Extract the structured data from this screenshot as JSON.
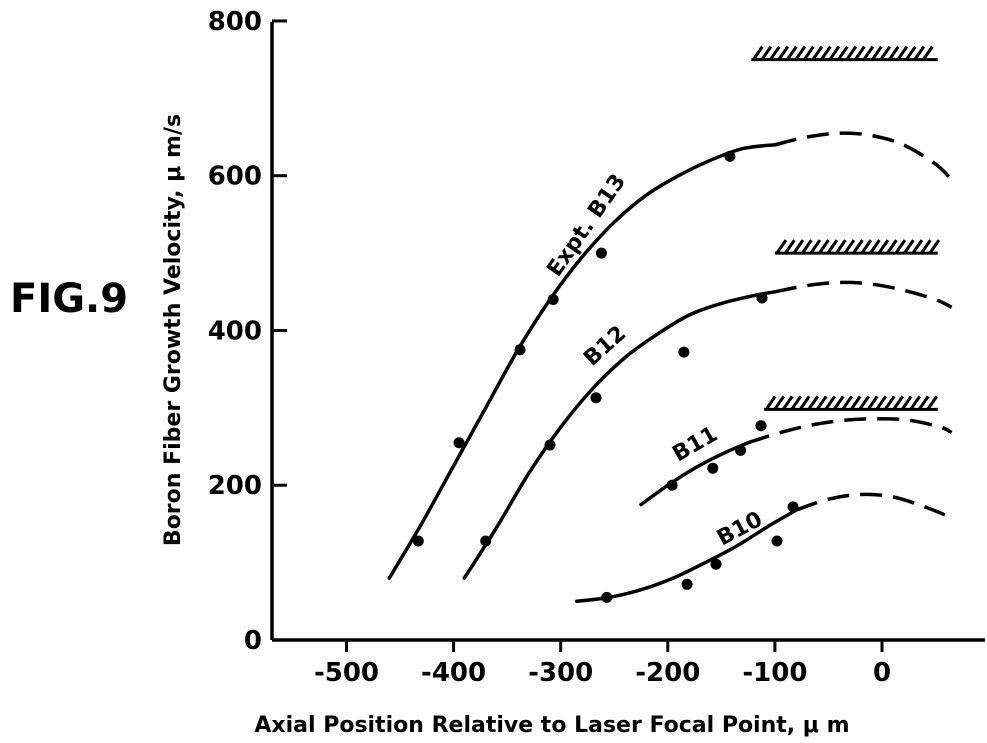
{
  "figure_label": "FIG.9",
  "chart_data": {
    "type": "scatter",
    "title": "",
    "xlabel": "Axial Position Relative to Laser Focal Point, μ m",
    "ylabel": "Boron Fiber Growth Velocity, μ m/s",
    "xlim": [
      -570,
      75
    ],
    "ylim": [
      0,
      800
    ],
    "x_ticks": [
      -500,
      -400,
      -300,
      -200,
      -100,
      0
    ],
    "x_tick_labels": [
      "-500",
      "-400",
      "-300",
      "-200",
      "-100",
      "0"
    ],
    "y_ticks": [
      0,
      200,
      400,
      600,
      800
    ],
    "y_tick_labels": [
      "0",
      "200",
      "400",
      "600",
      "800"
    ],
    "grid": false,
    "legend": "none",
    "series": [
      {
        "name": "Expt. B13",
        "points": {
          "x": [
            -433,
            -395,
            -338,
            -307,
            -262,
            -142
          ],
          "y": [
            128,
            255,
            375,
            440,
            500,
            625
          ]
        },
        "fit_solid": {
          "x": [
            -460,
            -430,
            -400,
            -370,
            -340,
            -310,
            -280,
            -250,
            -220,
            -190,
            -160,
            -130,
            -100
          ],
          "y": [
            80,
            150,
            225,
            300,
            375,
            440,
            495,
            540,
            575,
            600,
            620,
            635,
            640
          ]
        },
        "fit_dashed": {
          "x": [
            -100,
            -70,
            -40,
            -10,
            20,
            50,
            65
          ],
          "y": [
            640,
            650,
            655,
            652,
            640,
            615,
            595
          ]
        },
        "limit": 750,
        "limit_range": [
          -122,
          52
        ]
      },
      {
        "name": "B12",
        "points": {
          "x": [
            -370,
            -310,
            -267,
            -185,
            -112
          ],
          "y": [
            128,
            252,
            313,
            372,
            442
          ]
        },
        "fit_solid": {
          "x": [
            -390,
            -360,
            -330,
            -300,
            -270,
            -240,
            -210,
            -180,
            -150,
            -120,
            -100
          ],
          "y": [
            80,
            145,
            215,
            275,
            325,
            365,
            395,
            420,
            435,
            445,
            450
          ]
        },
        "fit_dashed": {
          "x": [
            -100,
            -70,
            -40,
            -10,
            20,
            50,
            65
          ],
          "y": [
            450,
            458,
            462,
            460,
            452,
            440,
            430
          ]
        },
        "limit": 500,
        "limit_range": [
          -100,
          52
        ]
      },
      {
        "name": "B11",
        "points": {
          "x": [
            -196,
            -158,
            -132,
            -113
          ],
          "y": [
            200,
            222,
            245,
            277
          ]
        },
        "fit_solid": {
          "x": [
            -225,
            -200,
            -175,
            -150,
            -125
          ],
          "y": [
            175,
            200,
            222,
            240,
            255
          ]
        },
        "fit_dashed": {
          "x": [
            -125,
            -95,
            -65,
            -35,
            -5,
            25,
            55,
            65
          ],
          "y": [
            255,
            268,
            278,
            284,
            286,
            284,
            275,
            268
          ]
        },
        "limit": 298,
        "limit_range": [
          -110,
          52
        ]
      },
      {
        "name": "B10",
        "points": {
          "x": [
            -257,
            -182,
            -155,
            -98,
            -83
          ],
          "y": [
            55,
            72,
            98,
            128,
            172
          ]
        },
        "fit_solid": {
          "x": [
            -285,
            -255,
            -225,
            -195,
            -165,
            -135,
            -105,
            -80
          ],
          "y": [
            50,
            55,
            65,
            80,
            100,
            122,
            148,
            168
          ]
        },
        "fit_dashed": {
          "x": [
            -80,
            -50,
            -20,
            10,
            40,
            65
          ],
          "y": [
            168,
            182,
            188,
            185,
            172,
            158
          ]
        }
      }
    ]
  }
}
